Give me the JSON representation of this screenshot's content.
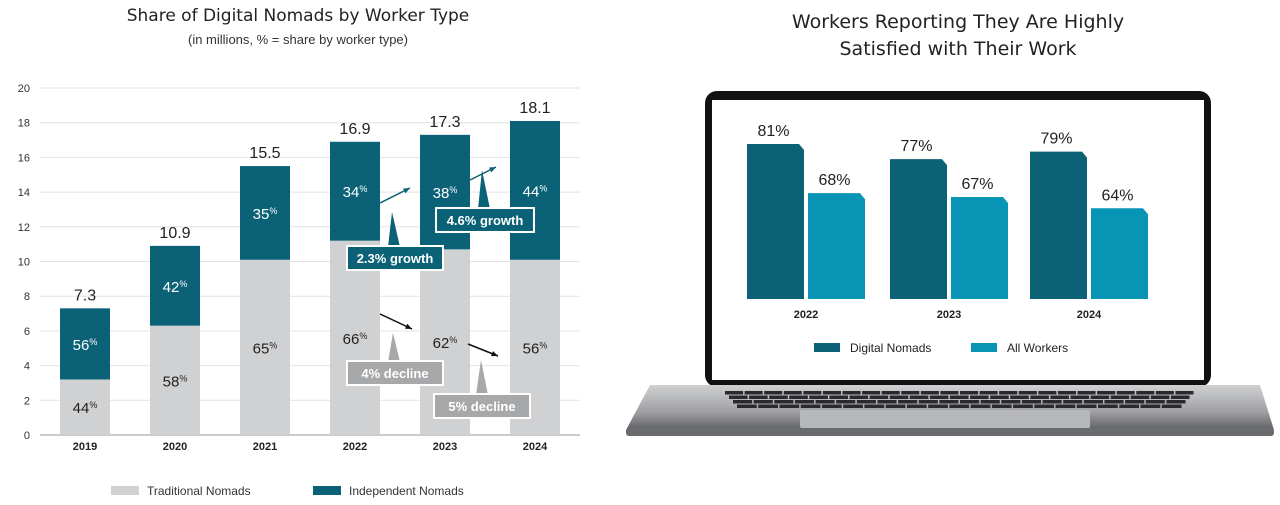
{
  "colors": {
    "traditional": "#d0d1d3",
    "independent": "#0b6277",
    "digital_nomads": "#0b6277",
    "all_workers": "#0895b5",
    "callout_teal": "#0b6277",
    "callout_gray": "#a7a8aa"
  },
  "chart_data": [
    {
      "type": "bar",
      "stacked": true,
      "title": "Share of Digital Nomads by Worker Type",
      "subtitle": "(in millions, % = share by worker type)",
      "ylim": [
        0,
        20
      ],
      "yticks": [
        0,
        2,
        4,
        6,
        8,
        10,
        12,
        14,
        16,
        18,
        20
      ],
      "categories": [
        "2019",
        "2020",
        "2021",
        "2022",
        "2023",
        "2024"
      ],
      "totals": [
        "7.3",
        "10.9",
        "15.5",
        "16.9",
        "17.3",
        "18.1"
      ],
      "series": [
        {
          "name": "Traditional Nomads",
          "values": [
            3.2,
            6.3,
            10.1,
            11.2,
            10.7,
            10.1
          ],
          "labels": [
            "44",
            "58",
            "65",
            "66",
            "62",
            "56"
          ]
        },
        {
          "name": "Independent Nomads",
          "values": [
            4.1,
            4.6,
            5.4,
            5.7,
            6.6,
            8.0
          ],
          "labels": [
            "56",
            "42",
            "35",
            "34",
            "38",
            "44"
          ]
        }
      ],
      "pct_suffix": "%",
      "annotations": [
        "2.3% growth",
        "4.6% growth",
        "4% decline",
        "5% decline"
      ],
      "legend_position": "bottom"
    },
    {
      "type": "bar",
      "title_line1": "Workers Reporting They Are Highly",
      "title_line2": "Satisfied with Their Work",
      "categories": [
        "2022",
        "2023",
        "2024"
      ],
      "series": [
        {
          "name": "Digital Nomads",
          "values": [
            81,
            77,
            79
          ],
          "labels": [
            "81%",
            "77%",
            "79%"
          ]
        },
        {
          "name": "All Workers",
          "values": [
            68,
            67,
            64
          ],
          "labels": [
            "68%",
            "67%",
            "64%"
          ]
        }
      ],
      "legend_position": "bottom"
    }
  ]
}
